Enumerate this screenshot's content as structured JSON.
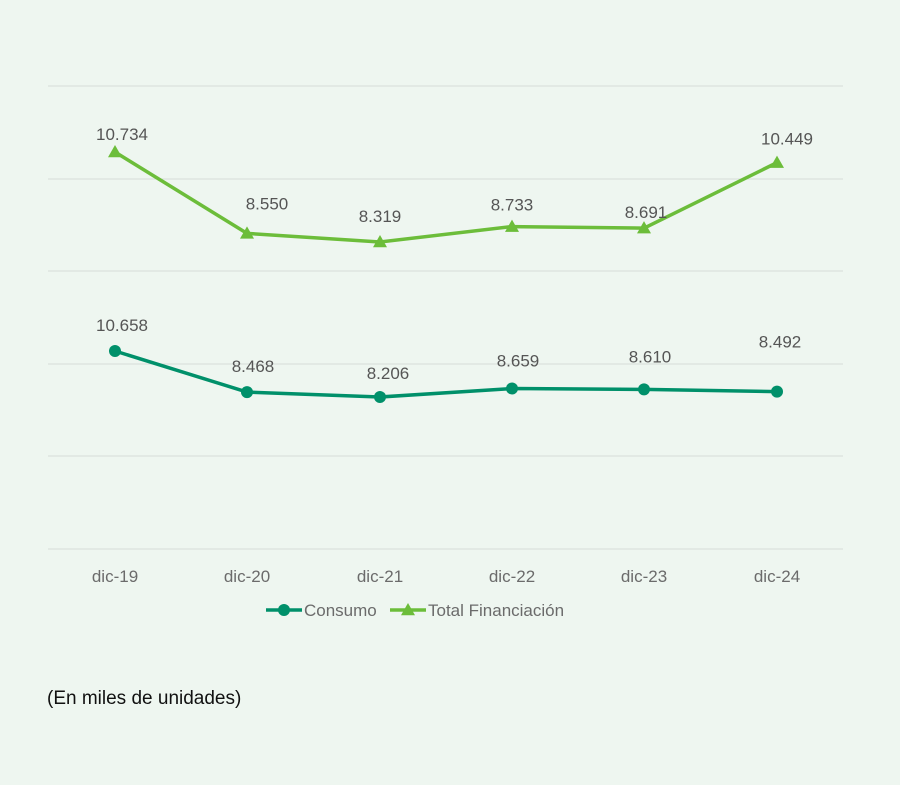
{
  "chart_data": {
    "type": "line",
    "categories": [
      "dic-19",
      "dic-20",
      "dic-21",
      "dic-22",
      "dic-23",
      "dic-24"
    ],
    "series": [
      {
        "name": "Consumo",
        "values": [
          10658,
          8468,
          8206,
          8659,
          8610,
          8492
        ],
        "labels": [
          "10.658",
          "8.468",
          "8.206",
          "8.659",
          "8.610",
          "8.492"
        ],
        "color": "#00906a",
        "marker": "circle"
      },
      {
        "name": "Total Financiación",
        "values": [
          10734,
          8550,
          8319,
          8733,
          8691,
          10449
        ],
        "labels": [
          "10.734",
          "8.550",
          "8.319",
          "8.733",
          "8.691",
          "10.449"
        ],
        "color": "#6cbd3a",
        "marker": "triangle"
      }
    ],
    "grid": true,
    "legend": "bottom"
  },
  "note": "(En miles de unidades)"
}
